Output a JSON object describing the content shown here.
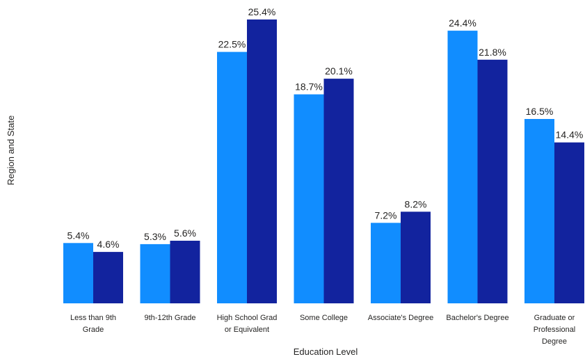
{
  "chart_data": {
    "type": "bar",
    "xlabel": "Education Level",
    "ylabel": "Region and State",
    "categories": [
      [
        "Less than 9th",
        "Grade"
      ],
      [
        "9th-12th Grade"
      ],
      [
        "High School Grad",
        "or Equivalent"
      ],
      [
        "Some College"
      ],
      [
        "Associate's Degree"
      ],
      [
        "Bachelor's Degree"
      ],
      [
        "Graduate or",
        "Professional",
        "Degree"
      ]
    ],
    "series": [
      {
        "color": "#118DFF",
        "values": [
          5.4,
          5.3,
          22.5,
          18.7,
          7.2,
          24.4,
          16.5
        ],
        "labels": [
          "5.4%",
          "5.3%",
          "22.5%",
          "18.7%",
          "7.2%",
          "24.4%",
          "16.5%"
        ]
      },
      {
        "color": "#12239E",
        "values": [
          4.6,
          5.6,
          25.4,
          20.1,
          8.2,
          21.8,
          14.4
        ],
        "labels": [
          "4.6%",
          "5.6%",
          "25.4%",
          "20.1%",
          "8.2%",
          "21.8%",
          "14.4%"
        ]
      }
    ],
    "ylim": [
      0,
      25.4
    ],
    "grid": false,
    "legend": "none"
  }
}
